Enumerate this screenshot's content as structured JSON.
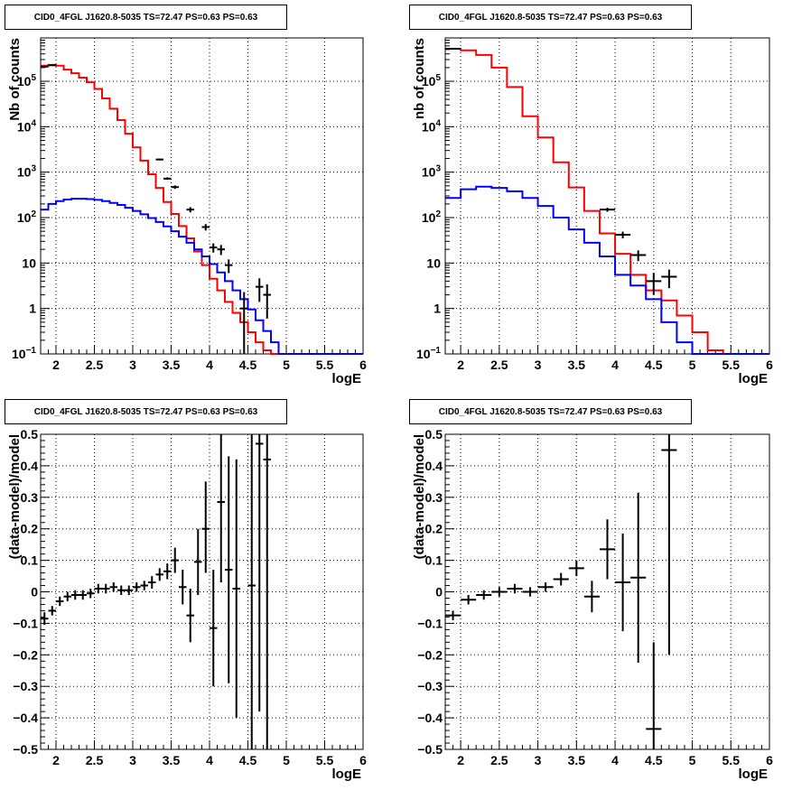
{
  "chart_data": [
    {
      "type": "line",
      "title": "CID0_4FGL J1620.8-5035 TS=72.47 PS=0.63 PS=0.63",
      "xlabel": "logE",
      "ylabel": "Nb of counts",
      "xlim": [
        1.8,
        6
      ],
      "ylim": [
        0.1,
        900000
      ],
      "yscale": "log",
      "grid": true,
      "xticks": [
        "2",
        "2.5",
        "3",
        "3.5",
        "4",
        "4.5",
        "5",
        "5.5",
        "6"
      ],
      "yticks": [
        "10^-1",
        "1",
        "10",
        "10^2",
        "10^3",
        "10^4",
        "10^5"
      ],
      "colors": {
        "total_model": "#ff0000",
        "source_model": "#0000ff",
        "data": "#000000"
      },
      "bin_edges": [
        1.8,
        1.9,
        2.0,
        2.1,
        2.2,
        2.3,
        2.4,
        2.5,
        2.6,
        2.7,
        2.8,
        2.9,
        3.0,
        3.1,
        3.2,
        3.3,
        3.4,
        3.5,
        3.6,
        3.7,
        3.8,
        3.9,
        4.0,
        4.1,
        4.2,
        4.3,
        4.4,
        4.5,
        4.6,
        4.7,
        4.8,
        4.9,
        5.0,
        5.1,
        5.2,
        5.3,
        5.4,
        5.5,
        5.6,
        5.7,
        5.8,
        5.9,
        6.0
      ],
      "series": [
        {
          "values": [
            220000,
            230000,
            220000,
            180000,
            150000,
            120000,
            95000,
            68000,
            42000,
            25000,
            14000,
            7000,
            3500,
            1800,
            900,
            450,
            220,
            120,
            65,
            35,
            18,
            9,
            4.5,
            2.5,
            1.4,
            0.8,
            0.5,
            0.3,
            0.18,
            0.12,
            0.1,
            0.1,
            0.1,
            0.1,
            0.1,
            0.1,
            0.1,
            0.1,
            0.1,
            0.1,
            0.1,
            0.1
          ],
          "style": "red-step"
        },
        {
          "values": [
            150,
            200,
            230,
            250,
            260,
            260,
            255,
            245,
            230,
            210,
            190,
            165,
            140,
            118,
            98,
            80,
            64,
            50,
            38,
            28,
            20,
            14,
            9.5,
            6.2,
            4.0,
            2.5,
            1.6,
            0.95,
            0.55,
            0.32,
            0.18,
            0.1,
            0.1,
            0.1,
            0.1,
            0.1,
            0.1,
            0.1,
            0.1,
            0.1,
            0.1,
            0.1
          ],
          "style": "blue-step"
        }
      ],
      "points": [
        {
          "x": 1.85,
          "y": 210000,
          "ylo": 209000,
          "yhi": 211000
        },
        {
          "x": 1.95,
          "y": 225000,
          "ylo": 224000,
          "yhi": 226000
        },
        {
          "x": 3.35,
          "y": 1900,
          "ylo": 1820,
          "yhi": 1980
        },
        {
          "x": 3.45,
          "y": 720,
          "ylo": 680,
          "yhi": 770
        },
        {
          "x": 3.55,
          "y": 470,
          "ylo": 430,
          "yhi": 510
        },
        {
          "x": 3.75,
          "y": 150,
          "ylo": 130,
          "yhi": 170
        },
        {
          "x": 3.95,
          "y": 62,
          "ylo": 52,
          "yhi": 72
        },
        {
          "x": 4.05,
          "y": 22,
          "ylo": 17,
          "yhi": 27
        },
        {
          "x": 4.15,
          "y": 20,
          "ylo": 15,
          "yhi": 25
        },
        {
          "x": 4.25,
          "y": 9,
          "ylo": 6,
          "yhi": 12
        },
        {
          "x": 4.45,
          "y": 1,
          "ylo": 0.08,
          "yhi": 2.3
        },
        {
          "x": 4.65,
          "y": 3,
          "ylo": 1.4,
          "yhi": 4.6
        },
        {
          "x": 4.75,
          "y": 2,
          "ylo": 0.6,
          "yhi": 3.4
        }
      ]
    },
    {
      "type": "line",
      "title": "CID0_4FGL J1620.8-5035 TS=72.47 PS=0.63 PS=0.63",
      "xlabel": "logE",
      "ylabel": "nb of counts",
      "xlim": [
        1.8,
        6
      ],
      "ylim": [
        0.1,
        900000
      ],
      "yscale": "log",
      "grid": true,
      "xticks": [
        "2",
        "2.5",
        "3",
        "3.5",
        "4",
        "4.5",
        "5",
        "5.5",
        "6"
      ],
      "yticks": [
        "10^-1",
        "1",
        "10",
        "10^2",
        "10^3",
        "10^4",
        "10^5"
      ],
      "colors": {
        "total_model": "#ff0000",
        "source_model": "#0000ff",
        "data": "#000000"
      },
      "bin_edges": [
        1.8,
        2.0,
        2.2,
        2.4,
        2.6,
        2.8,
        3.0,
        3.2,
        3.4,
        3.6,
        3.8,
        4.0,
        4.2,
        4.4,
        4.6,
        4.8,
        5.0,
        5.2,
        5.4,
        5.6,
        5.8,
        6.0
      ],
      "series": [
        {
          "values": [
            520000,
            480000,
            380000,
            200000,
            75000,
            17000,
            5800,
            1650,
            460,
            140,
            45,
            16,
            5.5,
            2.5,
            1.5,
            0.7,
            0.3,
            0.12,
            0.1,
            0.1,
            0.1
          ],
          "style": "red-step"
        },
        {
          "values": [
            270,
            420,
            480,
            450,
            380,
            270,
            180,
            100,
            55,
            28,
            14,
            5.5,
            3.2,
            1.6,
            0.5,
            0.18,
            0.1,
            0.1,
            0.1,
            0.1,
            0.1
          ],
          "style": "blue-step"
        }
      ],
      "points": [
        {
          "x": 1.9,
          "y": 520000,
          "ylo": 518000,
          "yhi": 522000
        },
        {
          "x": 3.9,
          "y": 150,
          "ylo": 135,
          "yhi": 165
        },
        {
          "x": 4.1,
          "y": 42,
          "ylo": 35,
          "yhi": 49
        },
        {
          "x": 4.3,
          "y": 15,
          "ylo": 11,
          "yhi": 19
        },
        {
          "x": 4.5,
          "y": 4,
          "ylo": 2,
          "yhi": 6
        },
        {
          "x": 4.7,
          "y": 5,
          "ylo": 2.8,
          "yhi": 7.2
        }
      ]
    },
    {
      "type": "scatter",
      "title": "CID0_4FGL J1620.8-5035 TS=72.47 PS=0.63 PS=0.63",
      "xlabel": "logE",
      "ylabel": "(data-model)/model",
      "xlim": [
        1.8,
        6
      ],
      "ylim": [
        -0.5,
        0.5
      ],
      "yscale": "linear",
      "grid": true,
      "xticks": [
        "2",
        "2.5",
        "3",
        "3.5",
        "4",
        "4.5",
        "5",
        "5.5",
        "6"
      ],
      "yticks": [
        "-0.5",
        "-0.4",
        "-0.3",
        "-0.2",
        "-0.1",
        "0",
        "0.1",
        "0.2",
        "0.3",
        "0.4",
        "0.5"
      ],
      "xerr": 0.05,
      "points": [
        {
          "x": 1.85,
          "y": -0.085,
          "ylo": -0.105,
          "yhi": -0.065
        },
        {
          "x": 1.95,
          "y": -0.06,
          "ylo": -0.075,
          "yhi": -0.045
        },
        {
          "x": 2.05,
          "y": -0.03,
          "ylo": -0.045,
          "yhi": -0.015
        },
        {
          "x": 2.15,
          "y": -0.015,
          "ylo": -0.03,
          "yhi": 0.0
        },
        {
          "x": 2.25,
          "y": -0.01,
          "ylo": -0.025,
          "yhi": 0.005
        },
        {
          "x": 2.35,
          "y": -0.01,
          "ylo": -0.025,
          "yhi": 0.005
        },
        {
          "x": 2.45,
          "y": -0.005,
          "ylo": -0.02,
          "yhi": 0.01
        },
        {
          "x": 2.55,
          "y": 0.01,
          "ylo": -0.005,
          "yhi": 0.025
        },
        {
          "x": 2.65,
          "y": 0.01,
          "ylo": -0.005,
          "yhi": 0.025
        },
        {
          "x": 2.75,
          "y": 0.015,
          "ylo": 0.0,
          "yhi": 0.03
        },
        {
          "x": 2.85,
          "y": 0.005,
          "ylo": -0.01,
          "yhi": 0.02
        },
        {
          "x": 2.95,
          "y": 0.005,
          "ylo": -0.01,
          "yhi": 0.02
        },
        {
          "x": 3.05,
          "y": 0.015,
          "ylo": 0.0,
          "yhi": 0.03
        },
        {
          "x": 3.15,
          "y": 0.02,
          "ylo": 0.005,
          "yhi": 0.035
        },
        {
          "x": 3.25,
          "y": 0.03,
          "ylo": 0.01,
          "yhi": 0.05
        },
        {
          "x": 3.35,
          "y": 0.055,
          "ylo": 0.035,
          "yhi": 0.075
        },
        {
          "x": 3.45,
          "y": 0.065,
          "ylo": 0.04,
          "yhi": 0.09
        },
        {
          "x": 3.55,
          "y": 0.1,
          "ylo": 0.06,
          "yhi": 0.14
        },
        {
          "x": 3.65,
          "y": 0.015,
          "ylo": -0.04,
          "yhi": 0.07
        },
        {
          "x": 3.75,
          "y": -0.075,
          "ylo": -0.16,
          "yhi": 0.01
        },
        {
          "x": 3.85,
          "y": 0.095,
          "ylo": -0.01,
          "yhi": 0.2
        },
        {
          "x": 3.95,
          "y": 0.2,
          "ylo": 0.06,
          "yhi": 0.35
        },
        {
          "x": 4.05,
          "y": -0.115,
          "ylo": -0.3,
          "yhi": 0.07
        },
        {
          "x": 4.15,
          "y": 0.285,
          "ylo": 0.03,
          "yhi": 0.54
        },
        {
          "x": 4.25,
          "y": 0.07,
          "ylo": -0.29,
          "yhi": 0.43
        },
        {
          "x": 4.35,
          "y": 0.01,
          "ylo": -0.4,
          "yhi": 0.42
        },
        {
          "x": 4.55,
          "y": 0.02,
          "ylo": -0.5,
          "yhi": 0.5
        },
        {
          "x": 4.65,
          "y": 0.47,
          "ylo": -0.38,
          "yhi": 0.5
        },
        {
          "x": 4.75,
          "y": 0.42,
          "ylo": -0.5,
          "yhi": 0.5
        }
      ]
    },
    {
      "type": "scatter",
      "title": "CID0_4FGL J1620.8-5035 TS=72.47 PS=0.63 PS=0.63",
      "xlabel": "logE",
      "ylabel": "(data-model)/model",
      "xlim": [
        1.8,
        6
      ],
      "ylim": [
        -0.5,
        0.5
      ],
      "yscale": "linear",
      "grid": true,
      "xticks": [
        "2",
        "2.5",
        "3",
        "3.5",
        "4",
        "4.5",
        "5",
        "5.5",
        "6"
      ],
      "yticks": [
        "-0.5",
        "-0.4",
        "-0.3",
        "-0.2",
        "-0.1",
        "0",
        "0.1",
        "0.2",
        "0.3",
        "0.4",
        "0.5"
      ],
      "xerr": 0.1,
      "points": [
        {
          "x": 1.9,
          "y": -0.075,
          "ylo": -0.09,
          "yhi": -0.06
        },
        {
          "x": 2.1,
          "y": -0.025,
          "ylo": -0.04,
          "yhi": -0.01
        },
        {
          "x": 2.3,
          "y": -0.01,
          "ylo": -0.025,
          "yhi": 0.005
        },
        {
          "x": 2.5,
          "y": 0.0,
          "ylo": -0.015,
          "yhi": 0.015
        },
        {
          "x": 2.7,
          "y": 0.01,
          "ylo": -0.005,
          "yhi": 0.025
        },
        {
          "x": 2.9,
          "y": 0.0,
          "ylo": -0.015,
          "yhi": 0.015
        },
        {
          "x": 3.1,
          "y": 0.015,
          "ylo": 0.0,
          "yhi": 0.03
        },
        {
          "x": 3.3,
          "y": 0.04,
          "ylo": 0.02,
          "yhi": 0.06
        },
        {
          "x": 3.5,
          "y": 0.075,
          "ylo": 0.05,
          "yhi": 0.1
        },
        {
          "x": 3.7,
          "y": -0.015,
          "ylo": -0.065,
          "yhi": 0.035
        },
        {
          "x": 3.9,
          "y": 0.135,
          "ylo": 0.04,
          "yhi": 0.23
        },
        {
          "x": 4.1,
          "y": 0.03,
          "ylo": -0.125,
          "yhi": 0.185
        },
        {
          "x": 4.3,
          "y": 0.045,
          "ylo": -0.225,
          "yhi": 0.315
        },
        {
          "x": 4.5,
          "y": -0.435,
          "ylo": -0.5,
          "yhi": -0.16
        },
        {
          "x": 4.7,
          "y": 0.45,
          "ylo": -0.2,
          "yhi": 0.5
        }
      ]
    }
  ]
}
